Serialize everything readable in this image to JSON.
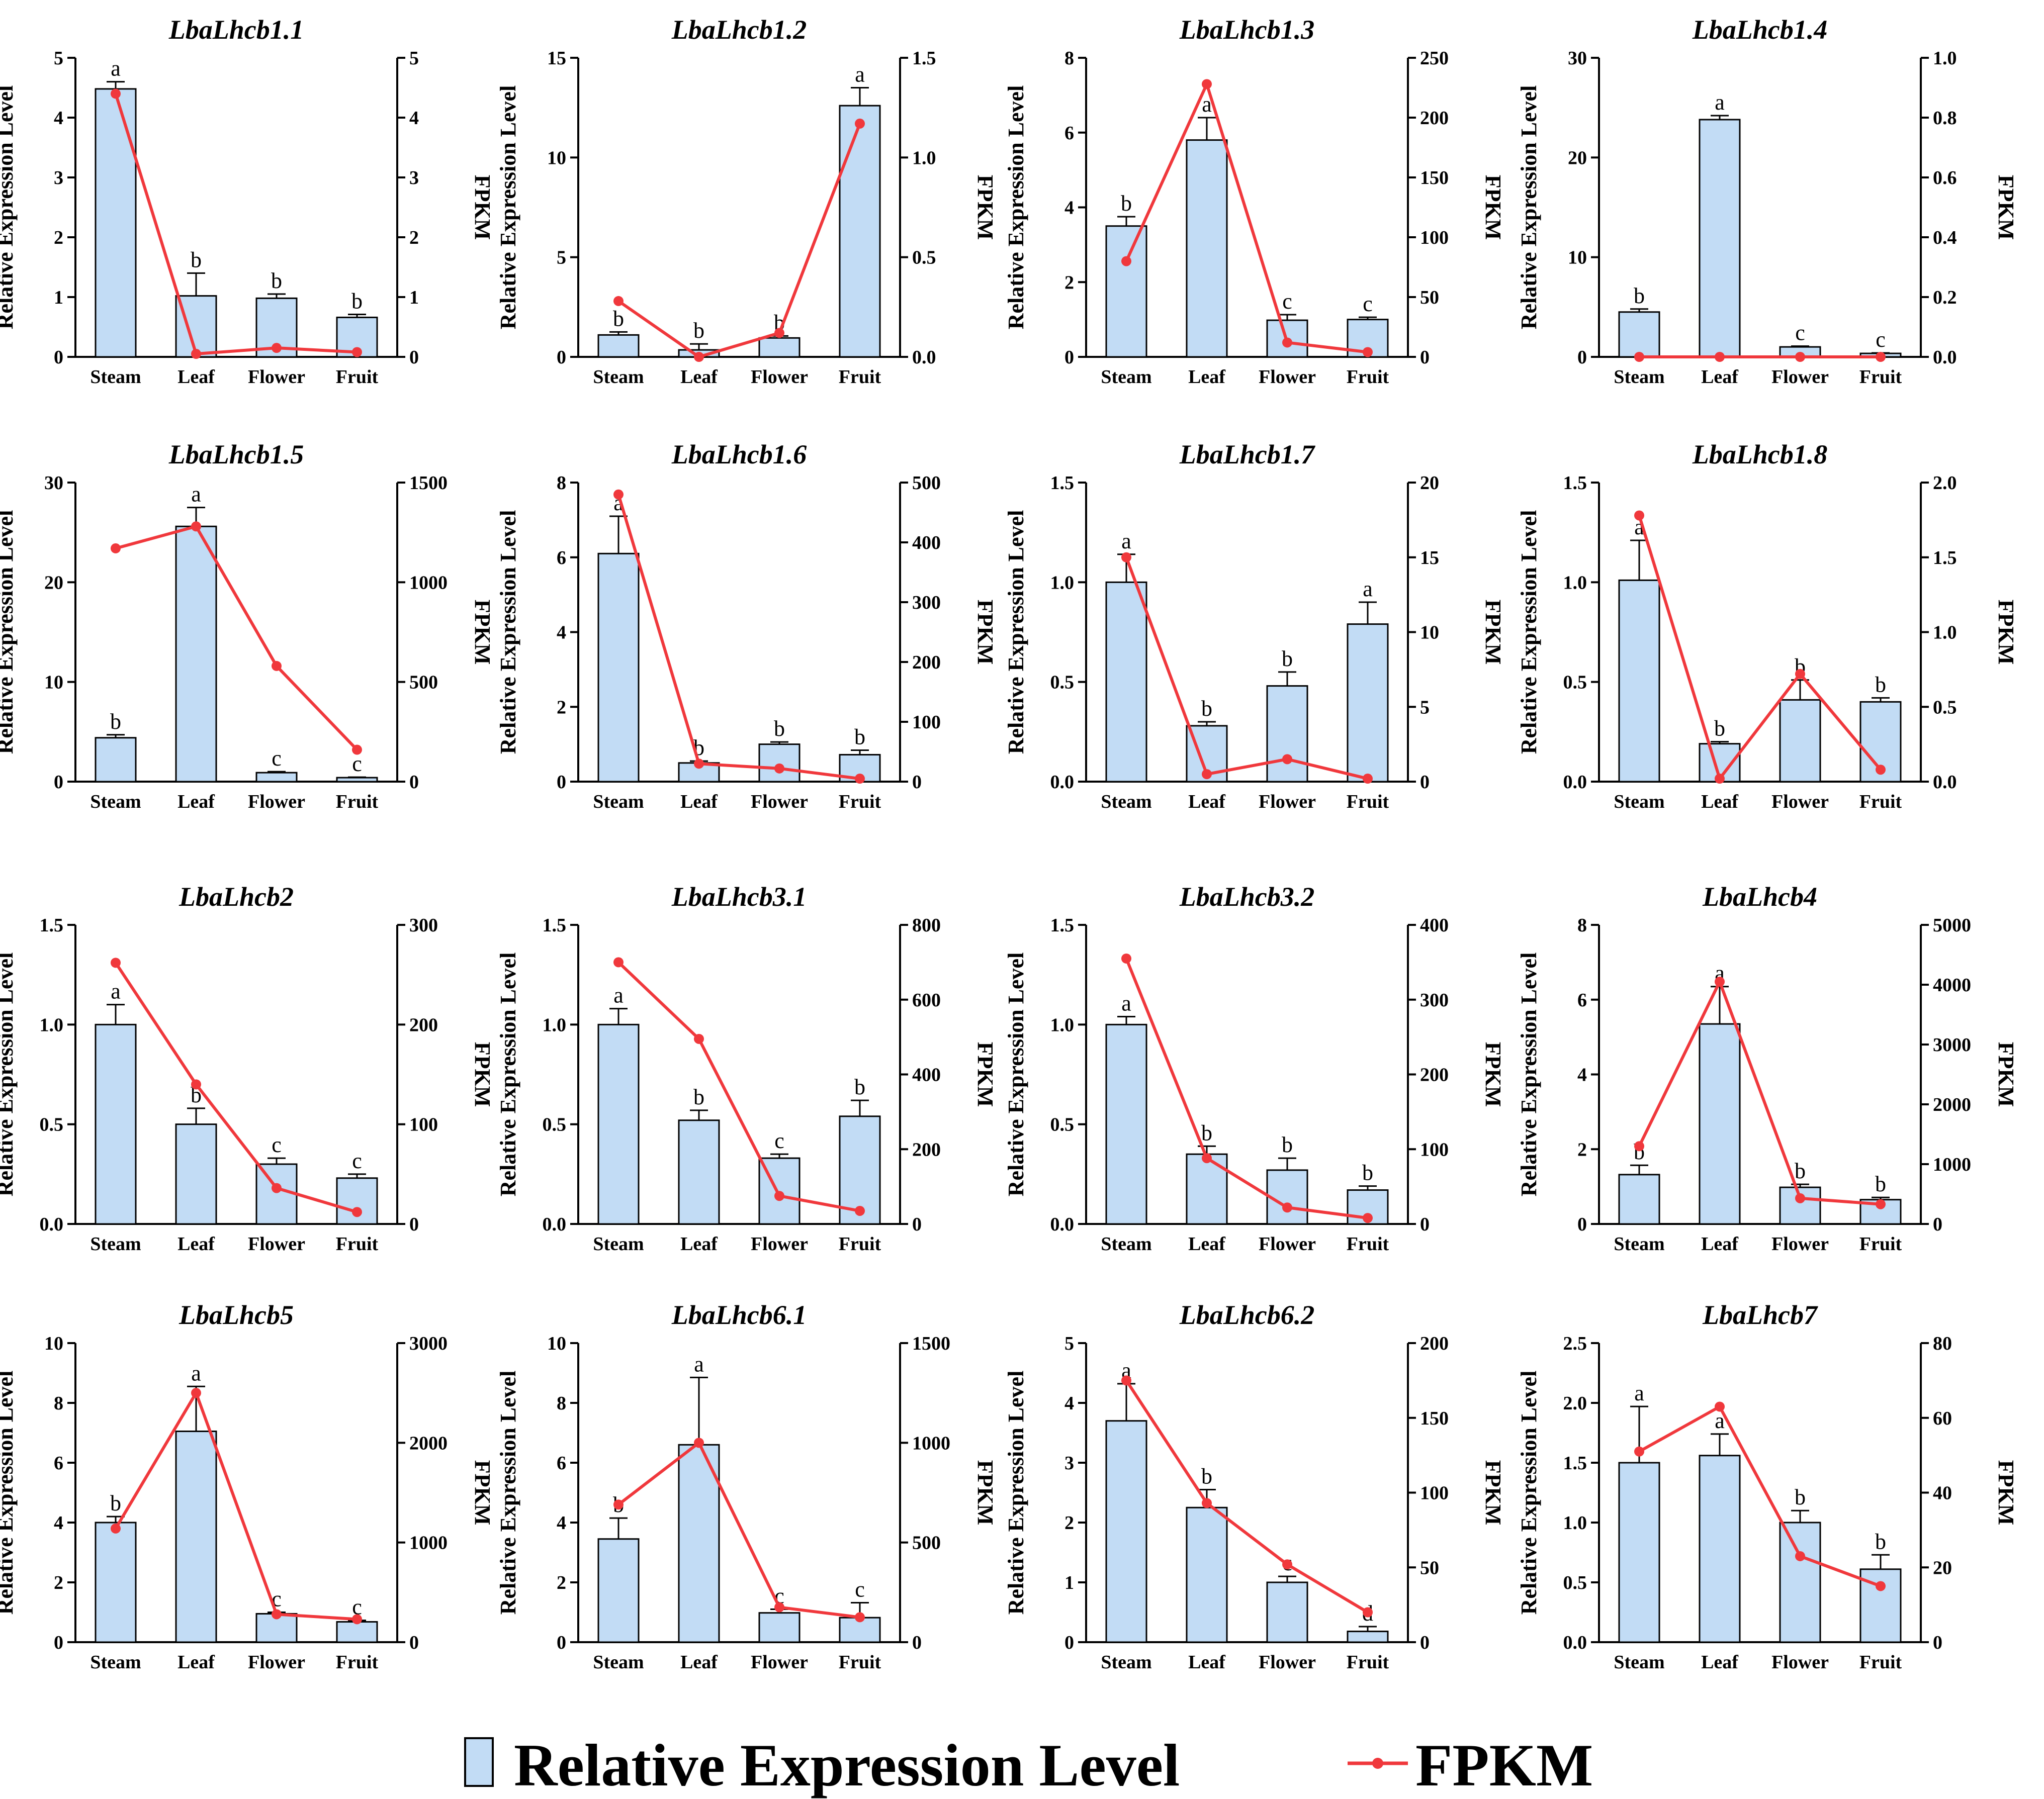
{
  "legend": {
    "bar_label": "Relative Expression Level",
    "line_label": "FPKM"
  },
  "colors": {
    "bar_fill": "#c2dcf5",
    "bar_stroke": "#000000",
    "line": "#f0383c"
  },
  "chart_data": [
    {
      "type": "bar",
      "title": "LbaLhcb1.1",
      "categories": [
        "Steam",
        "Leaf",
        "Flower",
        "Fruit"
      ],
      "ylabel": "Relative Expression Level",
      "y2label": "FPKM",
      "ylim": [
        0,
        5
      ],
      "yticks": [
        0,
        1,
        2,
        3,
        4,
        5
      ],
      "y2lim": [
        0,
        5
      ],
      "y2ticks": [
        0,
        1,
        2,
        3,
        4,
        5
      ],
      "series": [
        {
          "name": "Relative Expression Level",
          "values": [
            4.48,
            1.02,
            0.98,
            0.66
          ],
          "errors": [
            0.12,
            0.38,
            0.07,
            0.05
          ],
          "letters": [
            "a",
            "b",
            "b",
            "b"
          ]
        },
        {
          "name": "FPKM",
          "values": [
            4.4,
            0.05,
            0.15,
            0.08
          ]
        }
      ]
    },
    {
      "type": "bar",
      "title": "LbaLhcb1.2",
      "categories": [
        "Steam",
        "Leaf",
        "Flower",
        "Fruit"
      ],
      "ylabel": "Relative Expression Level",
      "y2label": "FPKM",
      "ylim": [
        0,
        15
      ],
      "yticks": [
        0,
        5,
        10,
        15
      ],
      "y2lim": [
        0,
        1.5
      ],
      "y2ticks": [
        "0.0",
        "0.5",
        "1.0",
        "1.5"
      ],
      "series": [
        {
          "name": "Relative Expression Level",
          "values": [
            1.1,
            0.35,
            0.95,
            12.6
          ],
          "errors": [
            0.15,
            0.3,
            0.1,
            0.9
          ],
          "letters": [
            "b",
            "b",
            "b",
            "a"
          ]
        },
        {
          "name": "FPKM",
          "values": [
            0.28,
            0.0,
            0.12,
            1.17
          ]
        }
      ]
    },
    {
      "type": "bar",
      "title": "LbaLhcb1.3",
      "categories": [
        "Steam",
        "Leaf",
        "Flower",
        "Fruit"
      ],
      "ylabel": "Relative Expression Level",
      "y2label": "FPKM",
      "ylim": [
        0,
        8
      ],
      "yticks": [
        0,
        2,
        4,
        6,
        8
      ],
      "y2lim": [
        0,
        250
      ],
      "y2ticks": [
        0,
        50,
        100,
        150,
        200,
        250
      ],
      "series": [
        {
          "name": "Relative Expression Level",
          "values": [
            3.5,
            5.8,
            0.98,
            1.0
          ],
          "errors": [
            0.25,
            0.6,
            0.15,
            0.06
          ],
          "letters": [
            "b",
            "a",
            "c",
            "c"
          ]
        },
        {
          "name": "FPKM",
          "values": [
            80,
            228,
            12,
            4
          ]
        }
      ]
    },
    {
      "type": "bar",
      "title": "LbaLhcb1.4",
      "categories": [
        "Steam",
        "Leaf",
        "Flower",
        "Fruit"
      ],
      "ylabel": "Relative Expression Level",
      "y2label": "FPKM",
      "ylim": [
        0,
        30
      ],
      "yticks": [
        0,
        10,
        20,
        30
      ],
      "y2lim": [
        0,
        1.0
      ],
      "y2ticks": [
        "0.0",
        "0.2",
        "0.4",
        "0.6",
        "0.8",
        "1.0"
      ],
      "series": [
        {
          "name": "Relative Expression Level",
          "values": [
            4.5,
            23.8,
            1.0,
            0.35
          ],
          "errors": [
            0.3,
            0.4,
            0.08,
            0.05
          ],
          "letters": [
            "b",
            "a",
            "c",
            "c"
          ]
        },
        {
          "name": "FPKM",
          "values": [
            0,
            0,
            0,
            0
          ]
        }
      ]
    },
    {
      "type": "bar",
      "title": "LbaLhcb1.5",
      "categories": [
        "Steam",
        "Leaf",
        "Flower",
        "Fruit"
      ],
      "ylabel": "Relative Expression Level",
      "y2label": "FPKM",
      "ylim": [
        0,
        30
      ],
      "yticks": [
        0,
        10,
        20,
        30
      ],
      "y2lim": [
        0,
        1500
      ],
      "y2ticks": [
        0,
        500,
        1000,
        1500
      ],
      "series": [
        {
          "name": "Relative Expression Level",
          "values": [
            4.4,
            25.6,
            0.9,
            0.4
          ],
          "errors": [
            0.3,
            1.9,
            0.1,
            0.05
          ],
          "letters": [
            "b",
            "a",
            "c",
            "c"
          ]
        },
        {
          "name": "FPKM",
          "values": [
            1170,
            1280,
            580,
            160
          ]
        }
      ]
    },
    {
      "type": "bar",
      "title": "LbaLhcb1.6",
      "categories": [
        "Steam",
        "Leaf",
        "Flower",
        "Fruit"
      ],
      "ylabel": "Relative Expression Level",
      "y2label": "FPKM",
      "ylim": [
        0,
        8
      ],
      "yticks": [
        0,
        2,
        4,
        6,
        8
      ],
      "y2lim": [
        0,
        500
      ],
      "y2ticks": [
        0,
        100,
        200,
        300,
        400,
        500
      ],
      "series": [
        {
          "name": "Relative Expression Level",
          "values": [
            6.1,
            0.5,
            1.0,
            0.72
          ],
          "errors": [
            1.0,
            0.05,
            0.06,
            0.12
          ],
          "letters": [
            "a",
            "b",
            "b",
            "b"
          ]
        },
        {
          "name": "FPKM",
          "values": [
            480,
            30,
            22,
            5
          ]
        }
      ]
    },
    {
      "type": "bar",
      "title": "LbaLhcb1.7",
      "categories": [
        "Steam",
        "Leaf",
        "Flower",
        "Fruit"
      ],
      "ylabel": "Relative Expression Level",
      "y2label": "FPKM",
      "ylim": [
        0,
        1.5
      ],
      "yticks": [
        "0.0",
        "0.5",
        "1.0",
        "1.5"
      ],
      "y2lim": [
        0,
        20
      ],
      "y2ticks": [
        0,
        5,
        10,
        15,
        20
      ],
      "series": [
        {
          "name": "Relative Expression Level",
          "values": [
            1.0,
            0.28,
            0.48,
            0.79
          ],
          "errors": [
            0.14,
            0.02,
            0.07,
            0.11
          ],
          "letters": [
            "a",
            "b",
            "b",
            "a"
          ]
        },
        {
          "name": "FPKM",
          "values": [
            15,
            0.5,
            1.5,
            0.2
          ]
        }
      ]
    },
    {
      "type": "bar",
      "title": "LbaLhcb1.8",
      "categories": [
        "Steam",
        "Leaf",
        "Flower",
        "Fruit"
      ],
      "ylabel": "Relative Expression Level",
      "y2label": "FPKM",
      "ylim": [
        0,
        1.5
      ],
      "yticks": [
        "0.0",
        "0.5",
        "1.0",
        "1.5"
      ],
      "y2lim": [
        0,
        2.0
      ],
      "y2ticks": [
        "0.0",
        "0.5",
        "1.0",
        "1.5",
        "2.0"
      ],
      "series": [
        {
          "name": "Relative Expression Level",
          "values": [
            1.01,
            0.19,
            0.41,
            0.4
          ],
          "errors": [
            0.2,
            0.01,
            0.1,
            0.02
          ],
          "letters": [
            "a",
            "b",
            "b",
            "b"
          ]
        },
        {
          "name": "FPKM",
          "values": [
            1.78,
            0.02,
            0.72,
            0.08
          ]
        }
      ]
    },
    {
      "type": "bar",
      "title": "LbaLhcb2",
      "categories": [
        "Steam",
        "Leaf",
        "Flower",
        "Fruit"
      ],
      "ylabel": "Relative Expression Level",
      "y2label": "FPKM",
      "ylim": [
        0,
        1.5
      ],
      "yticks": [
        "0.0",
        "0.5",
        "1.0",
        "1.5"
      ],
      "y2lim": [
        0,
        300
      ],
      "y2ticks": [
        0,
        100,
        200,
        300
      ],
      "series": [
        {
          "name": "Relative Expression Level",
          "values": [
            1.0,
            0.5,
            0.3,
            0.23
          ],
          "errors": [
            0.1,
            0.08,
            0.03,
            0.02
          ],
          "letters": [
            "a",
            "b",
            "c",
            "c"
          ]
        },
        {
          "name": "FPKM",
          "values": [
            262,
            140,
            36,
            12
          ]
        }
      ]
    },
    {
      "type": "bar",
      "title": "LbaLhcb3.1",
      "categories": [
        "Steam",
        "Leaf",
        "Flower",
        "Fruit"
      ],
      "ylabel": "Relative Expression Level",
      "y2label": "FPKM",
      "ylim": [
        0,
        1.5
      ],
      "yticks": [
        "0.0",
        "0.5",
        "1.0",
        "1.5"
      ],
      "y2lim": [
        0,
        800
      ],
      "y2ticks": [
        0,
        200,
        400,
        600,
        800
      ],
      "series": [
        {
          "name": "Relative Expression Level",
          "values": [
            1.0,
            0.52,
            0.33,
            0.54
          ],
          "errors": [
            0.08,
            0.05,
            0.02,
            0.08
          ],
          "letters": [
            "a",
            "b",
            "c",
            "b"
          ]
        },
        {
          "name": "FPKM",
          "values": [
            700,
            495,
            75,
            35
          ]
        }
      ]
    },
    {
      "type": "bar",
      "title": "LbaLhcb3.2",
      "categories": [
        "Steam",
        "Leaf",
        "Flower",
        "Fruit"
      ],
      "ylabel": "Relative Expression Level",
      "y2label": "FPKM",
      "ylim": [
        0,
        1.5
      ],
      "yticks": [
        "0.0",
        "0.5",
        "1.0",
        "1.5"
      ],
      "y2lim": [
        0,
        400
      ],
      "y2ticks": [
        0,
        100,
        200,
        300,
        400
      ],
      "series": [
        {
          "name": "Relative Expression Level",
          "values": [
            1.0,
            0.35,
            0.27,
            0.17
          ],
          "errors": [
            0.04,
            0.04,
            0.06,
            0.02
          ],
          "letters": [
            "a",
            "b",
            "b",
            "b"
          ]
        },
        {
          "name": "FPKM",
          "values": [
            355,
            88,
            22,
            8
          ]
        }
      ]
    },
    {
      "type": "bar",
      "title": "LbaLhcb4",
      "categories": [
        "Steam",
        "Leaf",
        "Flower",
        "Fruit"
      ],
      "ylabel": "Relative Expression Level",
      "y2label": "FPKM",
      "ylim": [
        0,
        8
      ],
      "yticks": [
        0,
        2,
        4,
        6,
        8
      ],
      "y2lim": [
        0,
        5000
      ],
      "y2ticks": [
        0,
        1000,
        2000,
        3000,
        4000,
        5000
      ],
      "series": [
        {
          "name": "Relative Expression Level",
          "values": [
            1.32,
            5.35,
            0.98,
            0.65
          ],
          "errors": [
            0.25,
            1.0,
            0.08,
            0.06
          ],
          "letters": [
            "b",
            "a",
            "b",
            "b"
          ]
        },
        {
          "name": "FPKM",
          "values": [
            1300,
            4050,
            430,
            330
          ]
        }
      ]
    },
    {
      "type": "bar",
      "title": "LbaLhcb5",
      "categories": [
        "Steam",
        "Leaf",
        "Flower",
        "Fruit"
      ],
      "ylabel": "Relative Expression Level",
      "y2label": "FPKM",
      "ylim": [
        0,
        10
      ],
      "yticks": [
        0,
        2,
        4,
        6,
        8,
        10
      ],
      "y2lim": [
        0,
        3000
      ],
      "y2ticks": [
        0,
        1000,
        2000,
        3000
      ],
      "series": [
        {
          "name": "Relative Expression Level",
          "values": [
            4.0,
            7.05,
            0.95,
            0.68
          ],
          "errors": [
            0.2,
            1.5,
            0.05,
            0.05
          ],
          "letters": [
            "b",
            "a",
            "c",
            "c"
          ]
        },
        {
          "name": "FPKM",
          "values": [
            1140,
            2500,
            280,
            230
          ]
        }
      ]
    },
    {
      "type": "bar",
      "title": "LbaLhcb6.1",
      "categories": [
        "Steam",
        "Leaf",
        "Flower",
        "Fruit"
      ],
      "ylabel": "Relative Expression Level",
      "y2label": "FPKM",
      "ylim": [
        0,
        10
      ],
      "yticks": [
        0,
        2,
        4,
        6,
        8,
        10
      ],
      "y2lim": [
        0,
        1500
      ],
      "y2ticks": [
        0,
        500,
        1000,
        1500
      ],
      "series": [
        {
          "name": "Relative Expression Level",
          "values": [
            3.45,
            6.6,
            0.98,
            0.82
          ],
          "errors": [
            0.7,
            2.25,
            0.12,
            0.5
          ],
          "letters": [
            "b",
            "a",
            "c",
            "c"
          ]
        },
        {
          "name": "FPKM",
          "values": [
            690,
            1000,
            175,
            125
          ]
        }
      ]
    },
    {
      "type": "bar",
      "title": "LbaLhcb6.2",
      "categories": [
        "Steam",
        "Leaf",
        "Flower",
        "Fruit"
      ],
      "ylabel": "Relative Expression Level",
      "y2label": "FPKM",
      "ylim": [
        0,
        5
      ],
      "yticks": [
        0,
        1,
        2,
        3,
        4,
        5
      ],
      "y2lim": [
        0,
        200
      ],
      "y2ticks": [
        0,
        50,
        100,
        150,
        200
      ],
      "series": [
        {
          "name": "Relative Expression Level",
          "values": [
            3.7,
            2.25,
            1.0,
            0.18
          ],
          "errors": [
            0.62,
            0.3,
            0.1,
            0.08
          ],
          "letters": [
            "a",
            "b",
            "c",
            "d"
          ]
        },
        {
          "name": "FPKM",
          "values": [
            175,
            93,
            52,
            20
          ]
        }
      ]
    },
    {
      "type": "bar",
      "title": "LbaLhcb7",
      "categories": [
        "Steam",
        "Leaf",
        "Flower",
        "Fruit"
      ],
      "ylabel": "Relative Expression Level",
      "y2label": "FPKM",
      "ylim": [
        0,
        2.5
      ],
      "yticks": [
        "0.0",
        "0.5",
        "1.0",
        "1.5",
        "2.0",
        "2.5"
      ],
      "y2lim": [
        0,
        80
      ],
      "y2ticks": [
        0,
        20,
        40,
        60,
        80
      ],
      "series": [
        {
          "name": "Relative Expression Level",
          "values": [
            1.5,
            1.56,
            1.0,
            0.61
          ],
          "errors": [
            0.47,
            0.18,
            0.1,
            0.12
          ],
          "letters": [
            "a",
            "a",
            "b",
            "b"
          ]
        },
        {
          "name": "FPKM",
          "values": [
            51,
            63,
            23,
            15
          ]
        }
      ]
    }
  ]
}
